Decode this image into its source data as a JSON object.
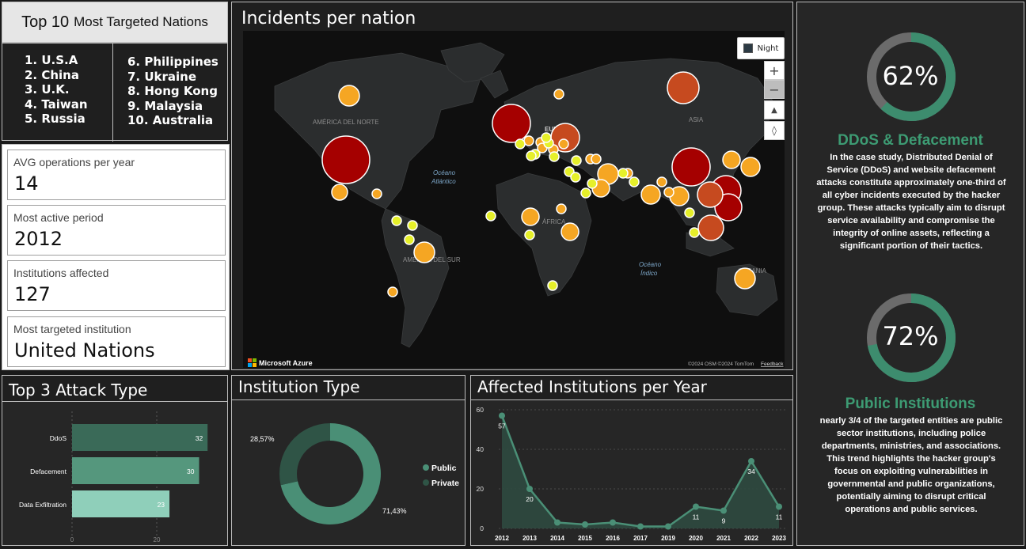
{
  "top10": {
    "title_big": "Top 10",
    "title_small": "Most Targeted Nations",
    "col1": [
      "1. U.S.A",
      "2. China",
      "3. U.K.",
      "4. Taiwan",
      "5. Russia"
    ],
    "col2": [
      "6. Philippines",
      "7. Ukraine",
      "8. Hong Kong",
      "9. Malaysia",
      "10. Australia"
    ]
  },
  "kpis": [
    {
      "label": "AVG operations per year",
      "value": "14"
    },
    {
      "label": "Most active period",
      "value": "2012"
    },
    {
      "label": "Institutions affected",
      "value": "127"
    },
    {
      "label": "Most targeted institution",
      "value": "United Nations"
    }
  ],
  "map": {
    "title": "Incidents per nation",
    "style_button": "Night",
    "labels": {
      "north_america": "AMÉRICA DEL NORTE",
      "south_america": "AMÉRICA DEL SUR",
      "europe": "EUROPA",
      "asia": "ASIA",
      "africa": "ÁFRICA",
      "oceania": "OCEANIA",
      "atlantic_1": "Océano",
      "atlantic_2": "Atlántico",
      "indian_1": "Océano",
      "indian_2": "Índico"
    },
    "brand": "Microsoft Azure",
    "attribution": "©2024 OSM  ©2024 TomTom",
    "feedback": "Feedback",
    "colors": {
      "high": "#a50000",
      "mid": "#c64a1f",
      "low": "#f5a623",
      "min": "#e6f02a"
    }
  },
  "attack": {
    "title": "Top 3 Attack Type",
    "chart_data": {
      "type": "bar",
      "orientation": "horizontal",
      "categories": [
        "DdoS",
        "Defacement",
        "Data Exfiltration"
      ],
      "values": [
        32,
        30,
        23
      ],
      "xlim": [
        0,
        32
      ],
      "xticks": [
        "0",
        "20"
      ],
      "colors": [
        "#3a6a58",
        "#55977d",
        "#8fcfba"
      ]
    }
  },
  "institution": {
    "title": "Institution Type",
    "chart_data": {
      "type": "pie",
      "donut": true,
      "labels": [
        "Public",
        "Private"
      ],
      "values": [
        71.43,
        28.57
      ],
      "value_labels": [
        "71,43%",
        "28,57%"
      ],
      "colors": [
        "#4a8f76",
        "#2f5446"
      ]
    }
  },
  "years": {
    "title": "Affected Institutions per Year",
    "chart_data": {
      "type": "area",
      "x": [
        "2012",
        "2013",
        "2014",
        "2015",
        "2016",
        "2017",
        "2019",
        "2020",
        "2021",
        "2022",
        "2023"
      ],
      "y": [
        57,
        20,
        3,
        2,
        3,
        1,
        1,
        11,
        9,
        34,
        11
      ],
      "data_labels": [
        "57",
        "20",
        "",
        "",
        "",
        "",
        "",
        "11",
        "9",
        "34",
        "11"
      ],
      "ylim": [
        0,
        60
      ],
      "yticks": [
        "0",
        "20",
        "40",
        "60"
      ],
      "color": "#4a8f76"
    }
  },
  "right": {
    "ddos": {
      "percent": "62%",
      "fraction": 0.62,
      "heading": "DDoS & Defacement",
      "body": "In the case study, Distributed Denial of Service (DDoS) and website defacement attacks constitute approximately one-third of all cyber incidents executed by the hacker group. These attacks typically aim to disrupt service availability and compromise the integrity of online assets, reflecting a significant portion of their tactics."
    },
    "public": {
      "percent": "72%",
      "fraction": 0.72,
      "heading": "Public Institutions",
      "body": "nearly 3/4 of the targeted entities are public sector institutions, including police departments, ministries, and associations. This trend highlights the hacker group's focus on exploiting vulnerabilities in governmental and public organizations, potentially aiming to disrupt critical operations and public services."
    },
    "ring_color": "#3d8c6e",
    "ring_track": "#6b6b6b"
  }
}
